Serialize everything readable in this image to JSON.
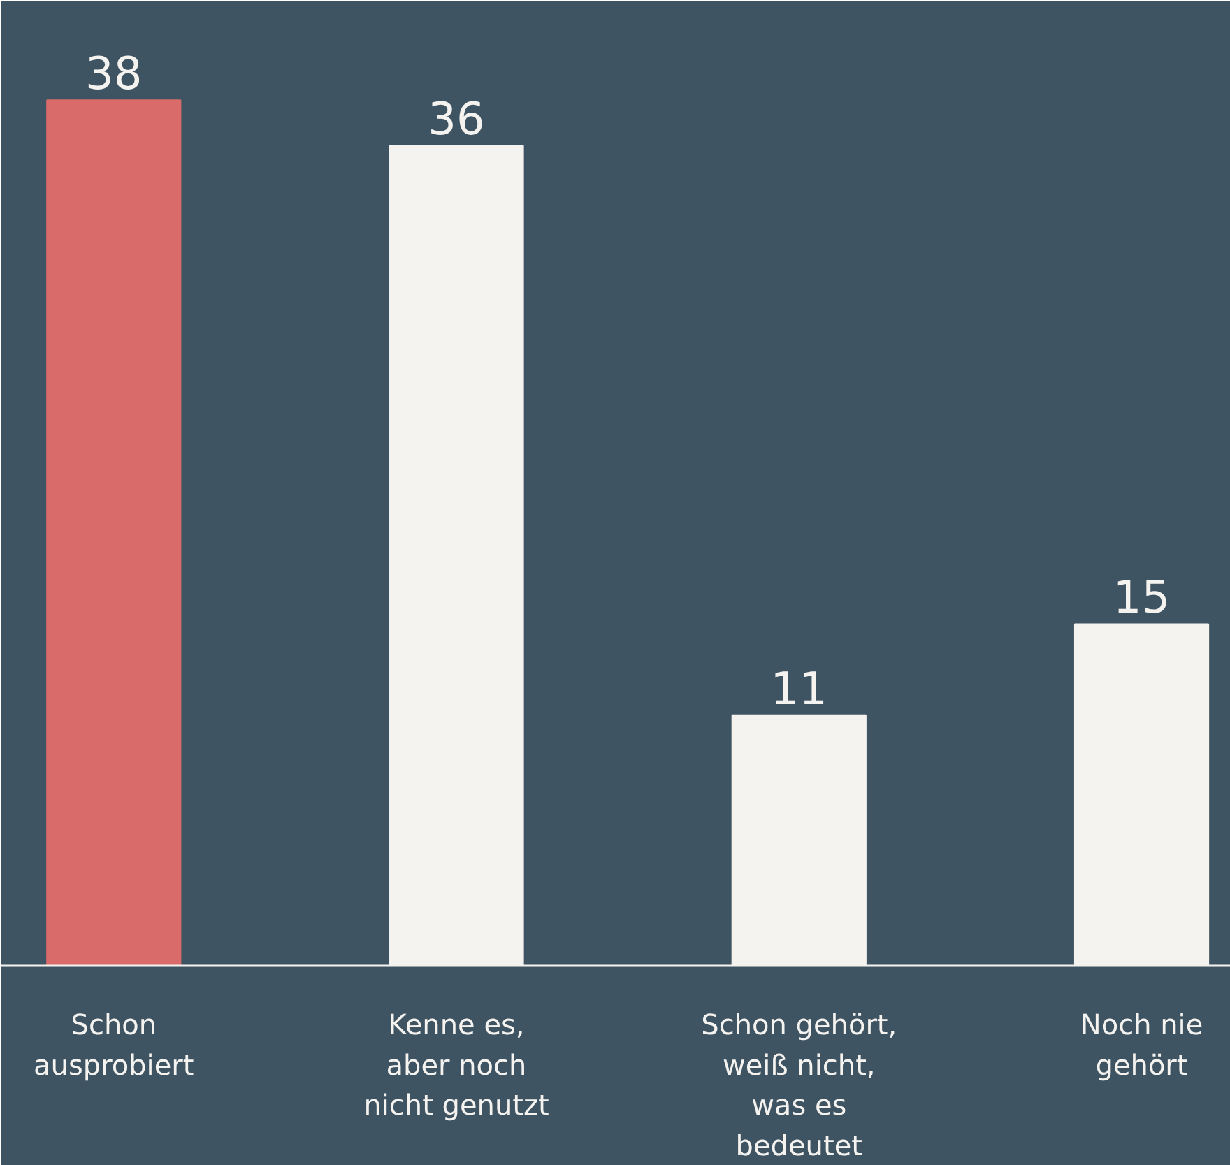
{
  "chart_data": {
    "type": "bar",
    "categories": [
      "Schon ausprobiert",
      "Kenne es, aber noch nicht genutzt",
      "Schon gehört, weiß nicht, was es bedeutet",
      "Noch nie gehört"
    ],
    "values": [
      38,
      36,
      11,
      15
    ],
    "colors": [
      "#d96b6b",
      "#f5f3f0",
      "#f5f3f0",
      "#f5f3f0"
    ],
    "data_labels": true,
    "grid": false
  }
}
